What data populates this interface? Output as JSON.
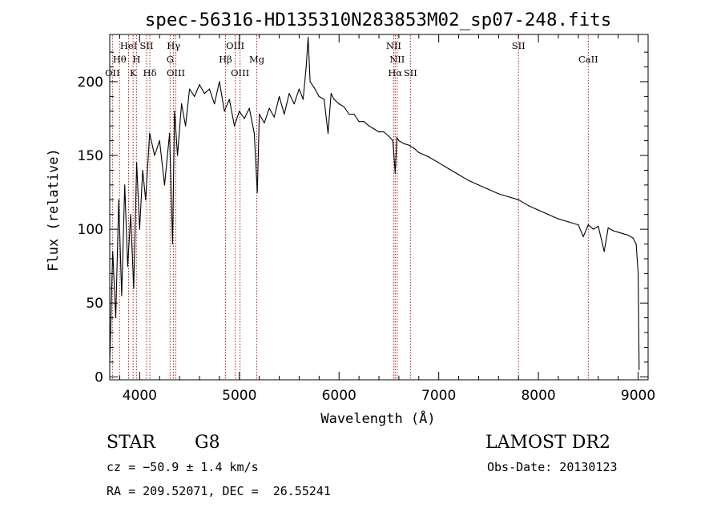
{
  "colors": {
    "spectrum": "#000000",
    "line_markers": "#b22222",
    "axes": "#000000",
    "background": "#ffffff"
  },
  "chart_data": {
    "type": "line",
    "title": "spec-56316-HD135310N283853M02_sp07-248.fits",
    "xlabel": "Wavelength (Å)",
    "ylabel": "Flux (relative)",
    "xlim": [
      3700,
      9100
    ],
    "ylim": [
      -2,
      232
    ],
    "xticks": [
      4000,
      5000,
      6000,
      7000,
      8000,
      9000
    ],
    "yticks": [
      0,
      50,
      100,
      150,
      200
    ],
    "grid": false,
    "legend": "none",
    "series": [
      {
        "x": [
          3700,
          3730,
          3760,
          3790,
          3820,
          3850,
          3880,
          3910,
          3940,
          3970,
          4000,
          4030,
          4060,
          4100,
          4150,
          4200,
          4250,
          4300,
          4330,
          4350,
          4380,
          4420,
          4460,
          4500,
          4550,
          4600,
          4650,
          4700,
          4750,
          4800,
          4850,
          4900,
          4950,
          5000,
          5050,
          5100,
          5150,
          5180,
          5200,
          5250,
          5300,
          5350,
          5400,
          5450,
          5500,
          5550,
          5600,
          5640,
          5670,
          5690,
          5710,
          5750,
          5800,
          5850,
          5890,
          5920,
          5950,
          6000,
          6050,
          6100,
          6150,
          6200,
          6250,
          6300,
          6350,
          6400,
          6450,
          6500,
          6540,
          6563,
          6580,
          6600,
          6650,
          6700,
          6750,
          6800,
          6900,
          7000,
          7100,
          7200,
          7300,
          7400,
          7500,
          7600,
          7700,
          7800,
          7900,
          8000,
          8100,
          8200,
          8300,
          8400,
          8450,
          8500,
          8550,
          8600,
          8660,
          8700,
          8750,
          8800,
          8850,
          8900,
          8950,
          8980,
          9000,
          9010
        ],
        "y": [
          10,
          85,
          40,
          120,
          55,
          130,
          75,
          110,
          60,
          145,
          100,
          140,
          120,
          165,
          150,
          160,
          130,
          165,
          90,
          180,
          150,
          185,
          170,
          195,
          190,
          198,
          192,
          195,
          185,
          200,
          180,
          188,
          170,
          180,
          175,
          182,
          165,
          125,
          178,
          172,
          182,
          176,
          190,
          178,
          192,
          185,
          195,
          188,
          210,
          230,
          200,
          196,
          190,
          188,
          165,
          192,
          188,
          185,
          183,
          178,
          178,
          173,
          173,
          170,
          168,
          166,
          166,
          163,
          160,
          138,
          162,
          160,
          158,
          157,
          155,
          152,
          149,
          145,
          141,
          137,
          133,
          130,
          127,
          124,
          122,
          120,
          116,
          113,
          110,
          107,
          105,
          103,
          95,
          103,
          100,
          102,
          85,
          101,
          99,
          98,
          97,
          96,
          94,
          90,
          70,
          5
        ]
      }
    ],
    "line_markers": [
      {
        "label": "OII",
        "wavelength": 3727,
        "row": 3
      },
      {
        "label": "Hθ",
        "wavelength": 3798,
        "row": 2
      },
      {
        "label": "HeI",
        "wavelength": 3889,
        "row": 1
      },
      {
        "label": "K",
        "wavelength": 3934,
        "row": 3
      },
      {
        "label": "H",
        "wavelength": 3968,
        "row": 2
      },
      {
        "label": "SII",
        "wavelength": 4070,
        "row": 1
      },
      {
        "label": "Hδ",
        "wavelength": 4102,
        "row": 3
      },
      {
        "label": "Hγ",
        "wavelength": 4340,
        "row": 1
      },
      {
        "label": "G",
        "wavelength": 4305,
        "row": 2
      },
      {
        "label": "OIII",
        "wavelength": 4363,
        "row": 3
      },
      {
        "label": "Hβ",
        "wavelength": 4861,
        "row": 2
      },
      {
        "label": "OIII",
        "wavelength": 4959,
        "row": 1
      },
      {
        "label": "OIII",
        "wavelength": 5007,
        "row": 3
      },
      {
        "label": "Mg",
        "wavelength": 5175,
        "row": 2
      },
      {
        "label": "NII",
        "wavelength": 6548,
        "row": 1
      },
      {
        "label": "NII",
        "wavelength": 6583,
        "row": 2
      },
      {
        "label": "Hα",
        "wavelength": 6563,
        "row": 3
      },
      {
        "label": "SII",
        "wavelength": 6716,
        "row": 3
      },
      {
        "label": "SII",
        "wavelength": 7800,
        "row": 1
      },
      {
        "label": "CaII",
        "wavelength": 8500,
        "row": 2
      }
    ]
  },
  "info": {
    "class": "STAR",
    "subclass": "G8",
    "survey": "LAMOST DR2",
    "cz": "cz = −50.9 ± 1.4 km/s",
    "obs_date": "Obs-Date: 20130123",
    "radec": "RA = 209.52071, DEC =  26.55241"
  }
}
